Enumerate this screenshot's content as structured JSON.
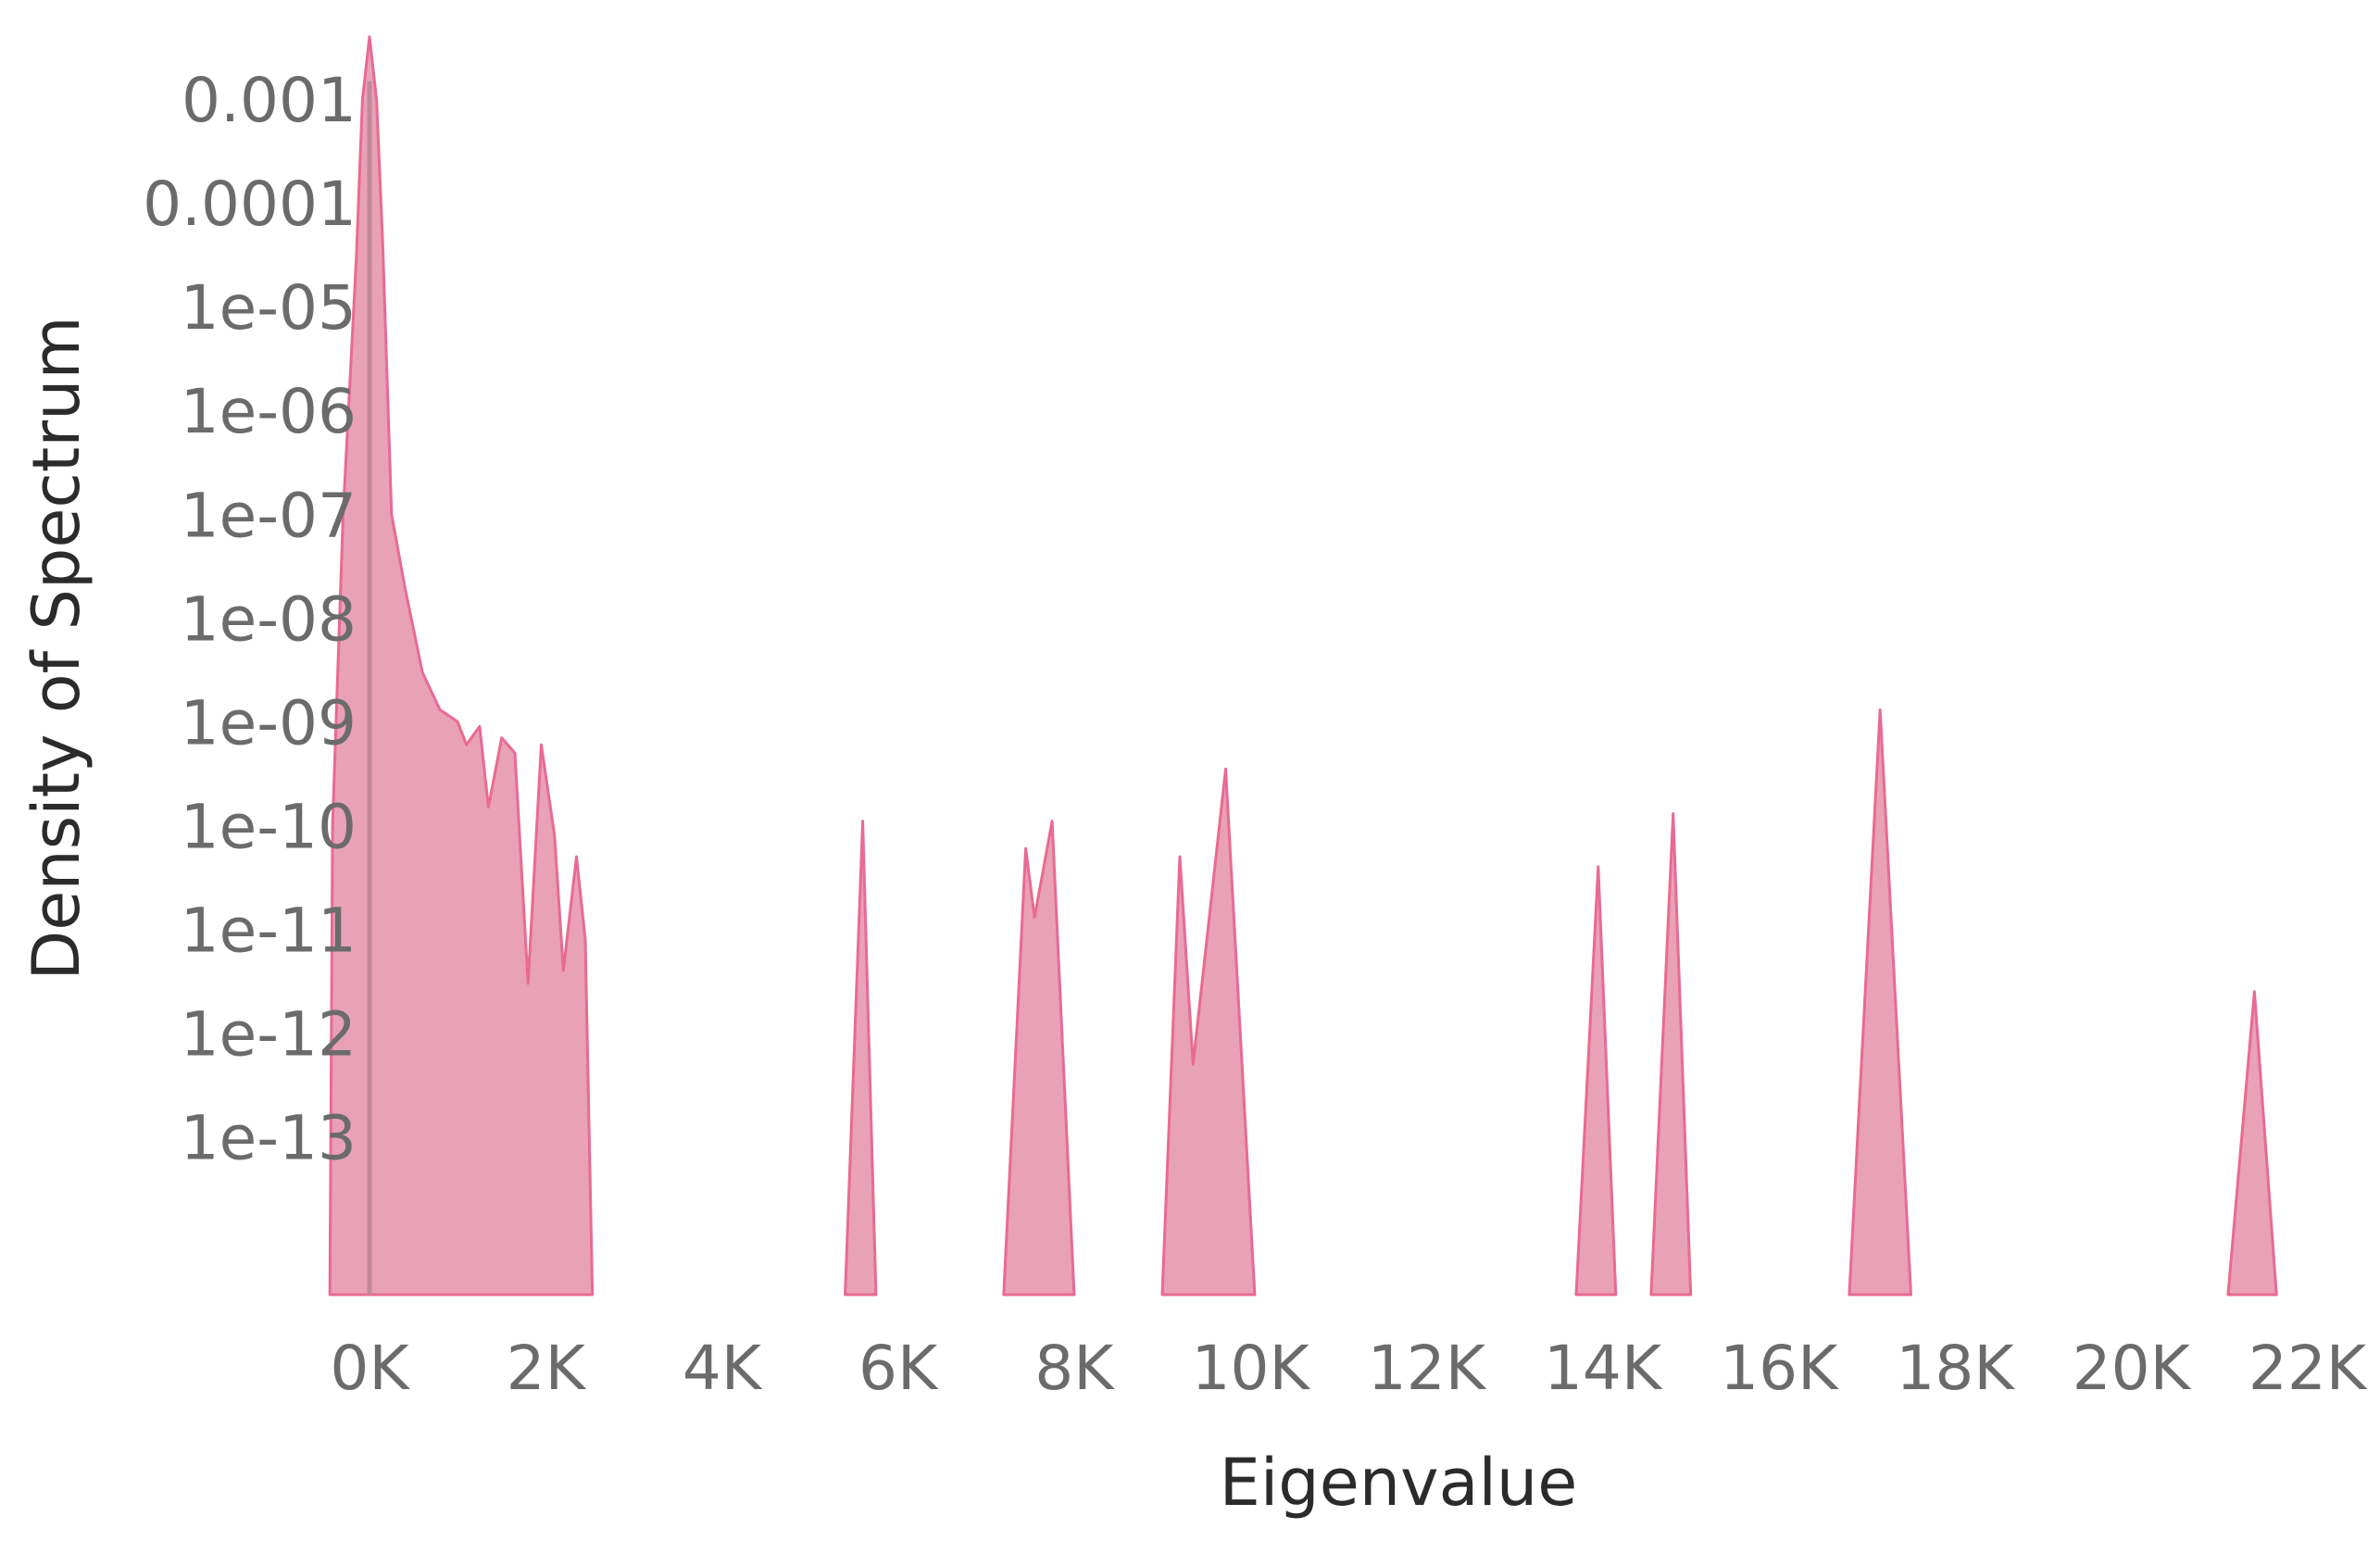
{
  "chart_data": {
    "type": "area",
    "title": "",
    "xlabel": "Eigenvalue",
    "ylabel": "Density of Spectrum",
    "yscale": "log",
    "xlim": [
      -200,
      22300
    ],
    "ylim": [
      3e-15,
      0.006
    ],
    "grid": false,
    "legend": "none",
    "fill_color": "#e8a1b6",
    "stroke_color": "#e96a92",
    "x_ticks": [
      {
        "value": 0,
        "label": "0K"
      },
      {
        "value": 2000,
        "label": "2K"
      },
      {
        "value": 4000,
        "label": "4K"
      },
      {
        "value": 6000,
        "label": "6K"
      },
      {
        "value": 8000,
        "label": "8K"
      },
      {
        "value": 10000,
        "label": "10K"
      },
      {
        "value": 12000,
        "label": "12K"
      },
      {
        "value": 14000,
        "label": "14K"
      },
      {
        "value": 16000,
        "label": "16K"
      },
      {
        "value": 18000,
        "label": "18K"
      },
      {
        "value": 20000,
        "label": "20K"
      },
      {
        "value": 22000,
        "label": "22K"
      }
    ],
    "y_ticks": [
      {
        "value": 0.001,
        "label": "0.001"
      },
      {
        "value": 0.0001,
        "label": "0.0001"
      },
      {
        "value": 1e-05,
        "label": "1e-05"
      },
      {
        "value": 1e-06,
        "label": "1e-06"
      },
      {
        "value": 1e-07,
        "label": "1e-07"
      },
      {
        "value": 1e-08,
        "label": "1e-08"
      },
      {
        "value": 1e-09,
        "label": "1e-09"
      },
      {
        "value": 1e-10,
        "label": "1e-10"
      },
      {
        "value": 1e-11,
        "label": "1e-11"
      },
      {
        "value": 1e-12,
        "label": "1e-12"
      },
      {
        "value": 1e-13,
        "label": "1e-13"
      }
    ],
    "baseline_y": 3e-15,
    "vertical_line_x": 0,
    "series": [
      {
        "points": [
          [
            -450,
            3e-15
          ],
          [
            -420,
            1e-10
          ],
          [
            -300,
            1e-07
          ],
          [
            -150,
            3e-05
          ],
          [
            -80,
            0.001
          ],
          [
            0,
            0.004
          ],
          [
            80,
            0.001
          ],
          [
            150,
            4e-05
          ],
          [
            250,
            1e-07
          ],
          [
            400,
            2e-08
          ],
          [
            600,
            3e-09
          ],
          [
            800,
            1.3e-09
          ],
          [
            1000,
            1e-09
          ],
          [
            1100,
            6e-10
          ],
          [
            1250,
            9e-10
          ],
          [
            1350,
            1.5e-10
          ],
          [
            1500,
            7e-10
          ],
          [
            1650,
            5e-10
          ],
          [
            1800,
            3e-12
          ],
          [
            1950,
            6e-10
          ],
          [
            2100,
            8e-11
          ],
          [
            2200,
            4e-12
          ],
          [
            2350,
            5e-11
          ],
          [
            2450,
            8e-12
          ],
          [
            2530,
            3e-15
          ]
        ]
      },
      {
        "points": [
          [
            5400,
            3e-15
          ],
          [
            5600,
            1.1e-10
          ],
          [
            5750,
            3e-15
          ]
        ]
      },
      {
        "points": [
          [
            7200,
            3e-15
          ],
          [
            7450,
            6e-11
          ],
          [
            7550,
            1.3e-11
          ],
          [
            7750,
            1.1e-10
          ],
          [
            8000,
            3e-15
          ]
        ]
      },
      {
        "points": [
          [
            9000,
            3e-15
          ],
          [
            9200,
            5e-11
          ],
          [
            9350,
            5e-13
          ],
          [
            9720,
            3.5e-10
          ],
          [
            10050,
            3e-15
          ]
        ]
      },
      {
        "points": [
          [
            13700,
            3e-15
          ],
          [
            13950,
            4e-11
          ],
          [
            14150,
            3e-15
          ]
        ]
      },
      {
        "points": [
          [
            14550,
            3e-15
          ],
          [
            14800,
            1.3e-10
          ],
          [
            15000,
            3e-15
          ]
        ]
      },
      {
        "points": [
          [
            16800,
            3e-15
          ],
          [
            17150,
            1.3e-09
          ],
          [
            17500,
            3e-15
          ]
        ]
      },
      {
        "points": [
          [
            21100,
            3e-15
          ],
          [
            21400,
            2.5e-12
          ],
          [
            21650,
            3e-15
          ]
        ]
      }
    ]
  }
}
